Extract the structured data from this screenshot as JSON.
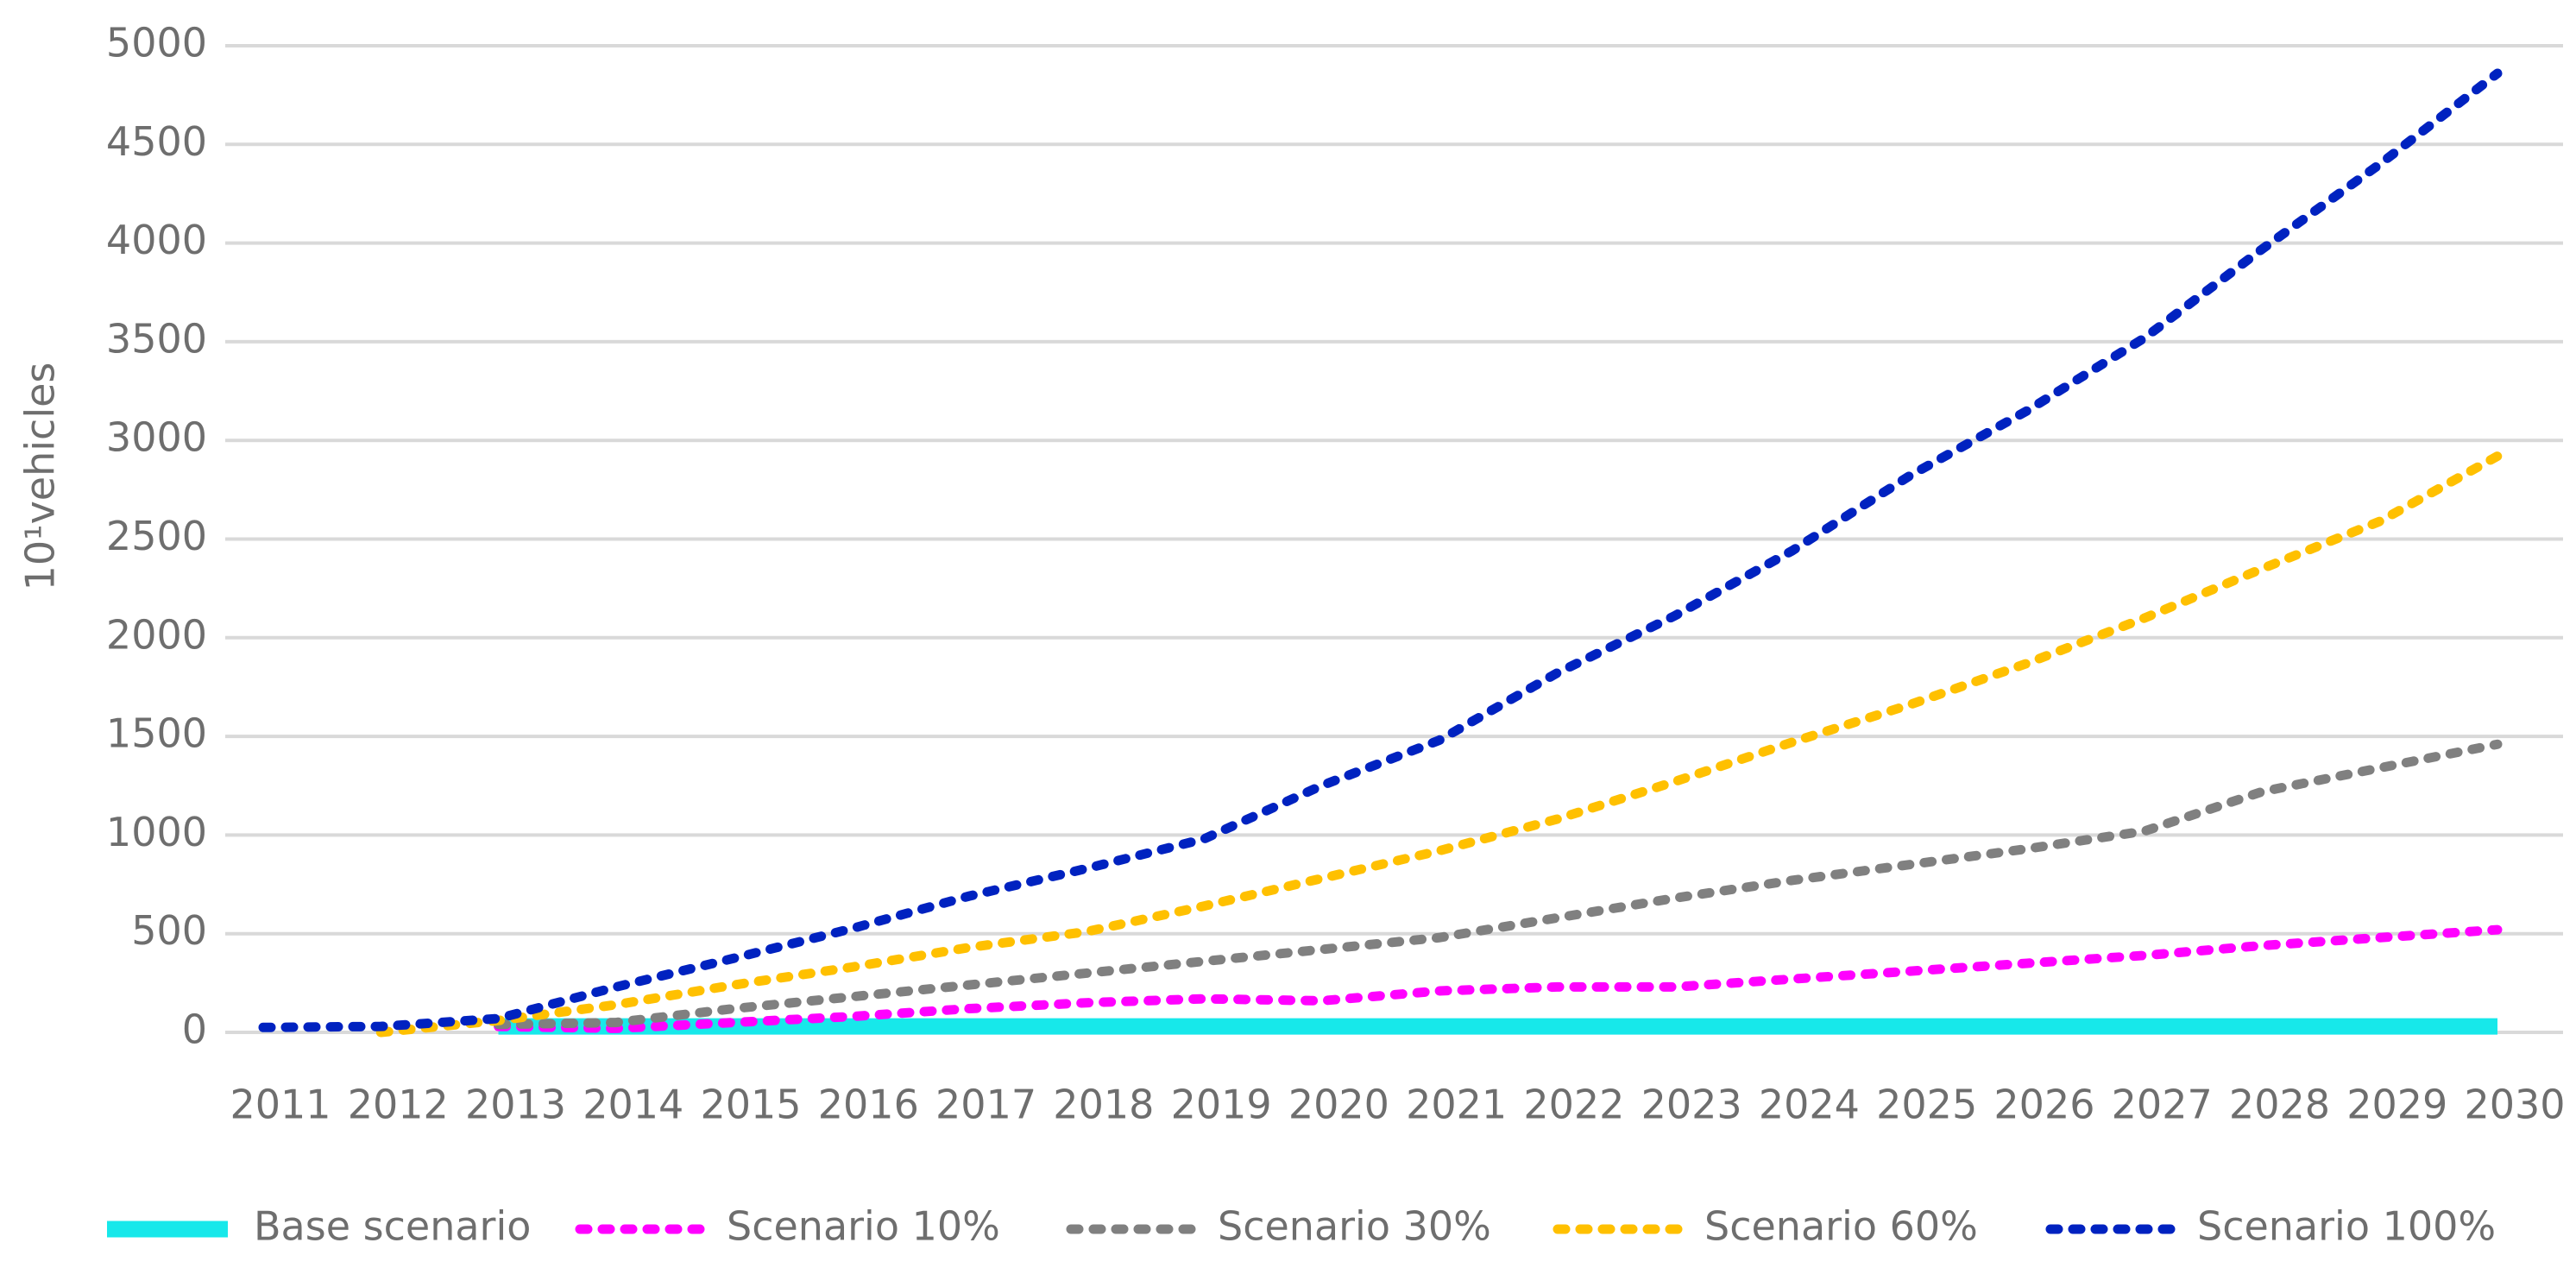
{
  "chart_data": {
    "type": "line",
    "y_label": "10¹vehicles",
    "categories": [
      "2011",
      "2012",
      "2013",
      "2014",
      "2015",
      "2016",
      "2017",
      "2018",
      "2019",
      "2020",
      "2021",
      "2022",
      "2023",
      "2024",
      "2025",
      "2026",
      "2027",
      "2028",
      "2029",
      "2030"
    ],
    "ylim": [
      0,
      5000
    ],
    "yticks": [
      0,
      500,
      1000,
      1500,
      2000,
      2500,
      3000,
      3500,
      4000,
      4500,
      5000
    ],
    "grid": true,
    "legend": "bottom",
    "series": [
      {
        "name": "Base scenario",
        "color": "#17e8ea",
        "style": "solid",
        "values": [
          null,
          null,
          30,
          30,
          30,
          30,
          30,
          30,
          30,
          30,
          30,
          30,
          30,
          30,
          30,
          30,
          30,
          30,
          30,
          30
        ]
      },
      {
        "name": "Scenario 10%",
        "color": "#ff00ff",
        "style": "dotted",
        "values": [
          null,
          null,
          30,
          20,
          50,
          80,
          120,
          150,
          170,
          160,
          210,
          230,
          230,
          270,
          310,
          350,
          390,
          440,
          480,
          520
        ]
      },
      {
        "name": "Scenario 30%",
        "color": "#808080",
        "style": "dotted",
        "values": [
          null,
          null,
          40,
          50,
          120,
          180,
          240,
          300,
          360,
          420,
          480,
          580,
          680,
          770,
          850,
          930,
          1020,
          1220,
          1340,
          1460
        ]
      },
      {
        "name": "Scenario 60%",
        "color": "#ffc000",
        "style": "dotted",
        "values": [
          null,
          0,
          60,
          140,
          240,
          330,
          430,
          510,
          640,
          780,
          920,
          1080,
          1270,
          1470,
          1660,
          1870,
          2100,
          2350,
          2590,
          2920
        ]
      },
      {
        "name": "Scenario 100%",
        "color": "#0022c0",
        "style": "dotted",
        "values": [
          25,
          30,
          70,
          230,
          375,
          525,
          690,
          830,
          980,
          1250,
          1480,
          1820,
          2110,
          2440,
          2820,
          3150,
          3520,
          3970,
          4400,
          4860
        ]
      }
    ]
  }
}
